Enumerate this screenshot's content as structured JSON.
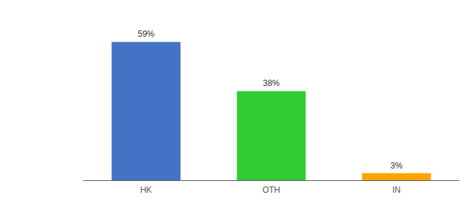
{
  "chart_data": {
    "type": "bar",
    "categories": [
      "HK",
      "OTH",
      "IN"
    ],
    "values": [
      59,
      38,
      3
    ],
    "value_labels": [
      "59%",
      "38%",
      "3%"
    ],
    "colors": [
      "#4472C4",
      "#33CC33",
      "#FFA500"
    ],
    "ylim": [
      0,
      68
    ],
    "grid": false,
    "data_labels": true,
    "tick_labels": "x"
  }
}
